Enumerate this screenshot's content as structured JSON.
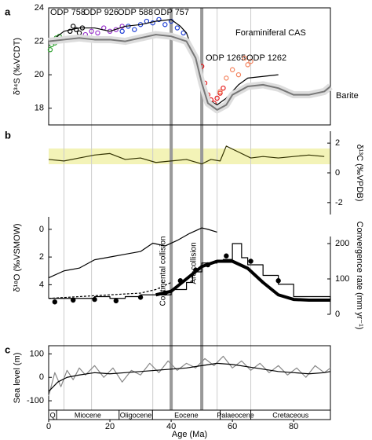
{
  "chart_data": [
    {
      "type": "line",
      "panel": "a",
      "y_label": "δ³⁴S (‰VCDT)",
      "y_axis_side": "left",
      "ylim": [
        17,
        24
      ],
      "yticks": [
        18,
        20,
        22,
        24
      ],
      "series": [
        {
          "name": "ODP 758",
          "kind": "scatter",
          "color": "#2ca02c",
          "x": [
            0.5,
            1,
            1.5,
            2,
            2.5,
            3,
            3.5
          ],
          "values": [
            21.5,
            21.8,
            22.0,
            21.9,
            22.2,
            22.1,
            22.3
          ]
        },
        {
          "name": "ODP 926",
          "kind": "scatter",
          "color": "#000000",
          "x": [
            7,
            8,
            9,
            10,
            11
          ],
          "values": [
            22.6,
            22.9,
            22.7,
            22.5,
            22.8
          ]
        },
        {
          "name": "ODP 588",
          "kind": "scatter",
          "color": "#9933cc",
          "x": [
            12,
            14,
            16,
            18,
            20,
            22,
            24
          ],
          "values": [
            22.4,
            22.6,
            22.5,
            22.8,
            22.6,
            22.7,
            22.9
          ]
        },
        {
          "name": "ODP 757",
          "kind": "scatter",
          "color": "#1f3fd6",
          "x": [
            24,
            26,
            28,
            30,
            32,
            34,
            36,
            38,
            40,
            42,
            44
          ],
          "values": [
            22.6,
            22.9,
            22.7,
            23.0,
            23.2,
            23.1,
            23.3,
            23.0,
            23.2,
            22.8,
            22.5
          ]
        },
        {
          "name": "ODP 1265",
          "kind": "scatter",
          "color": "#e41a1c",
          "x": [
            50,
            51,
            52,
            53,
            54,
            55,
            56,
            57
          ],
          "values": [
            20.5,
            19.5,
            18.8,
            18.5,
            18.3,
            18.6,
            18.9,
            19.2
          ]
        },
        {
          "name": "ODP 1262",
          "kind": "scatter",
          "color": "#f4845f",
          "x": [
            56,
            58,
            60,
            62,
            64,
            65,
            66
          ],
          "values": [
            19.0,
            19.8,
            20.3,
            20.0,
            21.0,
            20.6,
            20.8
          ]
        },
        {
          "name": "Foraminiferal CAS",
          "kind": "line",
          "color": "#000000",
          "x": [
            0,
            5,
            10,
            15,
            20,
            25,
            30,
            35,
            40,
            43,
            45,
            47,
            50,
            52,
            55,
            58,
            62,
            65,
            70,
            75
          ],
          "values": [
            21.9,
            22.6,
            22.8,
            22.8,
            22.6,
            22.9,
            23.0,
            23.2,
            23.3,
            22.9,
            22.5,
            21.5,
            19.5,
            18.5,
            18.2,
            18.6,
            19.4,
            19.8,
            19.9,
            20.0
          ]
        },
        {
          "name": "Barite",
          "kind": "line",
          "style": "band",
          "color": "#777777",
          "x": [
            0,
            5,
            10,
            15,
            20,
            25,
            30,
            35,
            40,
            45,
            48,
            50,
            52,
            55,
            58,
            60,
            65,
            70,
            75,
            80,
            85,
            90,
            92
          ],
          "values": [
            22.0,
            22.1,
            22.2,
            22.1,
            22.1,
            22.0,
            22.2,
            22.4,
            22.3,
            22.0,
            21.0,
            19.5,
            18.3,
            17.9,
            18.2,
            18.8,
            19.3,
            19.4,
            19.2,
            18.8,
            18.8,
            19.0,
            19.3
          ]
        }
      ]
    },
    {
      "type": "line",
      "panel": "b",
      "y_label": "δ¹³C (‰VPDB)",
      "y_axis_side": "right",
      "ylim": [
        -2.8,
        2.8
      ],
      "yticks": [
        -2,
        0,
        2
      ],
      "series": [
        {
          "kind": "line",
          "color": "#333300",
          "x": [
            0,
            5,
            10,
            15,
            20,
            25,
            30,
            35,
            40,
            45,
            50,
            53,
            56,
            58,
            62,
            66,
            70,
            75,
            80,
            85,
            90
          ],
          "values": [
            0.9,
            0.8,
            1.0,
            1.2,
            1.3,
            0.9,
            1.0,
            0.7,
            0.8,
            0.9,
            0.6,
            0.9,
            0.8,
            1.8,
            1.4,
            1.0,
            1.1,
            1.0,
            1.1,
            1.2,
            1.1
          ]
        }
      ]
    },
    {
      "type": "line",
      "y_label": "δ¹⁸O (‰VSMOW)",
      "y_axis_side": "left",
      "ylim": [
        5,
        -0.9
      ],
      "yticks": [
        0,
        2,
        4
      ],
      "series": [
        {
          "kind": "line",
          "color": "#000000",
          "x": [
            0,
            5,
            10,
            15,
            20,
            25,
            30,
            34,
            38,
            42,
            46,
            50,
            52,
            55
          ],
          "values": [
            3.5,
            3.0,
            2.8,
            2.2,
            2.0,
            1.8,
            1.6,
            1.0,
            1.2,
            0.8,
            0.3,
            -0.1,
            0.0,
            0.2
          ]
        }
      ]
    },
    {
      "type": "line",
      "y_label": "Convergence rate (mm yr⁻¹)",
      "y_axis_side": "right",
      "ylim": [
        0,
        220
      ],
      "yticks": [
        0,
        100,
        200
      ],
      "series": [
        {
          "kind": "step",
          "color": "#000000",
          "x": [
            0,
            10,
            15,
            20,
            25,
            30,
            35,
            40,
            45,
            47,
            50,
            55,
            57,
            60,
            63,
            65,
            70,
            75,
            80,
            92
          ],
          "values": [
            45,
            45,
            50,
            45,
            50,
            55,
            55,
            70,
            90,
            120,
            145,
            150,
            155,
            200,
            160,
            140,
            110,
            85,
            50,
            40
          ]
        },
        {
          "kind": "line",
          "style": "thick",
          "color": "#000000",
          "x": [
            35,
            40,
            45,
            50,
            55,
            60,
            65,
            70,
            75,
            80,
            85,
            92
          ],
          "values": [
            55,
            65,
            100,
            135,
            150,
            150,
            130,
            90,
            55,
            42,
            40,
            40
          ]
        },
        {
          "kind": "line",
          "style": "dashed",
          "color": "#000000",
          "x": [
            0,
            10,
            20,
            30,
            35,
            40
          ],
          "values": [
            45,
            50,
            55,
            60,
            70,
            90
          ]
        },
        {
          "kind": "scatter",
          "color": "#000000",
          "x": [
            2,
            8,
            15,
            22,
            30,
            38,
            43,
            48,
            52,
            58,
            66,
            75
          ],
          "values": [
            35,
            40,
            42,
            38,
            48,
            60,
            95,
            125,
            140,
            165,
            150,
            95
          ]
        }
      ]
    },
    {
      "type": "line",
      "panel": "c",
      "y_label": "Sea level (m)",
      "y_axis_side": "left",
      "ylim": [
        -140,
        135
      ],
      "yticks": [
        -100,
        0,
        100
      ],
      "x_label": "Age (Ma)",
      "xlim": [
        0,
        92
      ],
      "xticks": [
        0,
        20,
        40,
        60,
        80
      ],
      "reference_lines": [
        5,
        14,
        34,
        55,
        66
      ],
      "collisions": [
        {
          "value": 40,
          "label": "Continental collision"
        },
        {
          "value": 50,
          "label": "Arc collision"
        }
      ],
      "epochs": [
        {
          "name": "Q",
          "start": 0,
          "end": 2.6
        },
        {
          "name": "Miocene",
          "start": 2.6,
          "end": 23
        },
        {
          "name": "Oligocene",
          "start": 23,
          "end": 33.9
        },
        {
          "name": "Eocene",
          "start": 33.9,
          "end": 56
        },
        {
          "name": "Palaeocene",
          "start": 56,
          "end": 66
        },
        {
          "name": "Cretaceous",
          "start": 66,
          "end": 92
        }
      ],
      "series": [
        {
          "kind": "line",
          "color": "#888888",
          "x": [
            0,
            2,
            4,
            6,
            8,
            10,
            12,
            15,
            18,
            21,
            24,
            27,
            30,
            33,
            36,
            39,
            42,
            45,
            48,
            51,
            54,
            57,
            60,
            63,
            66,
            69,
            72,
            75,
            78,
            81,
            84,
            87,
            90,
            92
          ],
          "values": [
            -80,
            20,
            -40,
            30,
            -10,
            40,
            10,
            50,
            0,
            40,
            -20,
            30,
            10,
            60,
            20,
            70,
            30,
            60,
            40,
            80,
            50,
            90,
            40,
            70,
            30,
            60,
            20,
            50,
            10,
            40,
            0,
            50,
            20,
            40
          ]
        },
        {
          "kind": "line",
          "color": "#000000",
          "x": [
            0,
            3,
            6,
            10,
            15,
            20,
            25,
            30,
            35,
            40,
            45,
            50,
            55,
            60,
            65,
            70,
            75,
            80,
            85,
            90,
            92
          ],
          "values": [
            -60,
            -20,
            0,
            10,
            20,
            15,
            20,
            25,
            30,
            35,
            40,
            50,
            60,
            55,
            45,
            35,
            25,
            20,
            15,
            20,
            25
          ]
        }
      ]
    }
  ]
}
